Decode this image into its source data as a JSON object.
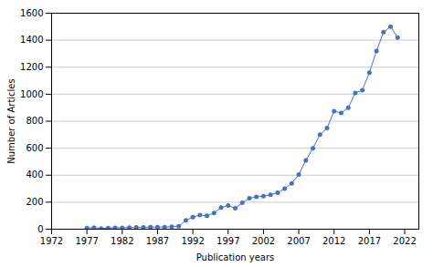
{
  "chart_data": {
    "type": "line",
    "x": [
      1977,
      1978,
      1979,
      1980,
      1981,
      1982,
      1983,
      1984,
      1985,
      1986,
      1987,
      1988,
      1989,
      1990,
      1991,
      1992,
      1993,
      1994,
      1995,
      1996,
      1997,
      1998,
      1999,
      2000,
      2001,
      2002,
      2003,
      2004,
      2005,
      2006,
      2007,
      2008,
      2009,
      2010,
      2011,
      2012,
      2013,
      2014,
      2015,
      2016,
      2017,
      2018,
      2019,
      2020,
      2021
    ],
    "values": [
      8,
      12,
      5,
      8,
      10,
      10,
      12,
      14,
      14,
      15,
      16,
      16,
      18,
      22,
      65,
      90,
      105,
      100,
      120,
      160,
      175,
      155,
      195,
      230,
      240,
      245,
      255,
      270,
      300,
      340,
      405,
      510,
      600,
      700,
      750,
      875,
      860,
      900,
      1010,
      1030,
      1160,
      1320,
      1460,
      1500,
      1420
    ],
    "xlabel": "Publication years",
    "ylabel": "Number of Articles",
    "xlim": [
      1972,
      2024
    ],
    "ylim": [
      0,
      1600
    ],
    "xticks": [
      1972,
      1977,
      1982,
      1987,
      1992,
      1997,
      2002,
      2007,
      2012,
      2017,
      2022
    ],
    "yticks": [
      0,
      200,
      400,
      600,
      800,
      1000,
      1200,
      1400,
      1600
    ],
    "color": "#4472C4",
    "marker": "circle",
    "grid": "y"
  }
}
